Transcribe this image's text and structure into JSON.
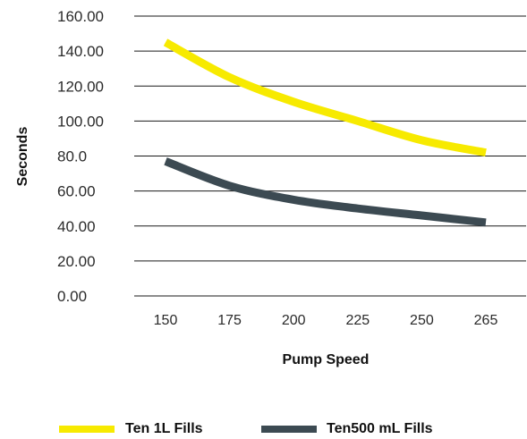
{
  "chart_data": {
    "type": "line",
    "title": "",
    "xlabel": "Pump Speed",
    "ylabel": "Seconds",
    "categories": [
      "150",
      "175",
      "200",
      "225",
      "250",
      "265"
    ],
    "y_ticks": [
      "160.00",
      "140.00",
      "120.00",
      "100.00",
      "80.0",
      "60.00",
      "40.00",
      "20.00",
      "0.00"
    ],
    "ylim": [
      0,
      160
    ],
    "grid": true,
    "legend_position": "bottom",
    "series": [
      {
        "name": "Ten 1L Fills",
        "color": "#f7ea00",
        "values": [
          145,
          125,
          111,
          100,
          89,
          82
        ]
      },
      {
        "name": "Ten500 mL Fills",
        "color": "#3c4a52",
        "values": [
          77,
          63,
          55,
          50,
          46,
          42
        ]
      }
    ]
  }
}
